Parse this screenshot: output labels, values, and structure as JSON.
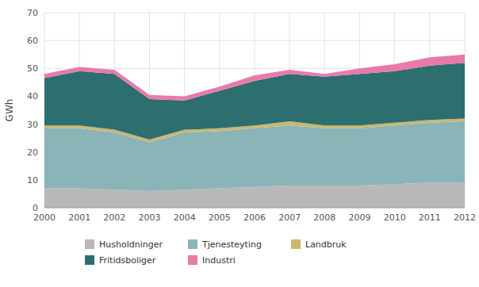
{
  "chart_data": {
    "type": "area",
    "stacked": true,
    "ylabel": "GWh",
    "x": [
      2000,
      2001,
      2002,
      2003,
      2004,
      2005,
      2006,
      2007,
      2008,
      2009,
      2010,
      2011,
      2012
    ],
    "xlim": [
      2000,
      2012
    ],
    "xticks": [
      2000,
      2001,
      2002,
      2003,
      2004,
      2005,
      2006,
      2007,
      2008,
      2009,
      2010,
      2011,
      2012
    ],
    "ylim": [
      0,
      70
    ],
    "yticks": [
      0,
      10,
      20,
      30,
      40,
      50,
      60,
      70
    ],
    "grid": true,
    "legend": "bottom",
    "series": [
      {
        "name": "Husholdninger",
        "color": "#b8b8b8",
        "values": [
          7.0,
          7.0,
          6.5,
          6.0,
          6.5,
          7.0,
          7.5,
          8.0,
          8.0,
          8.0,
          8.5,
          9.0,
          9.0
        ]
      },
      {
        "name": "Tjenesteyting",
        "color": "#8ab4b8",
        "values": [
          21.5,
          21.5,
          20.5,
          17.5,
          20.5,
          20.5,
          21.0,
          21.5,
          20.5,
          20.5,
          21.0,
          21.5,
          22.0
        ]
      },
      {
        "name": "Landbruk",
        "color": "#c8b870",
        "values": [
          1.0,
          1.0,
          1.0,
          1.0,
          1.0,
          1.0,
          1.0,
          1.5,
          1.0,
          1.0,
          1.0,
          1.0,
          1.0
        ]
      },
      {
        "name": "Fritidsboliger",
        "color": "#2d6e6e",
        "values": [
          17.0,
          19.5,
          20.0,
          14.5,
          10.5,
          13.5,
          16.0,
          17.0,
          17.5,
          18.5,
          18.5,
          19.5,
          20.0
        ]
      },
      {
        "name": "Industri",
        "color": "#e87aaa",
        "values": [
          1.5,
          1.5,
          1.5,
          1.5,
          1.5,
          1.5,
          2.0,
          1.5,
          1.0,
          2.0,
          2.5,
          3.0,
          3.0
        ]
      }
    ]
  }
}
